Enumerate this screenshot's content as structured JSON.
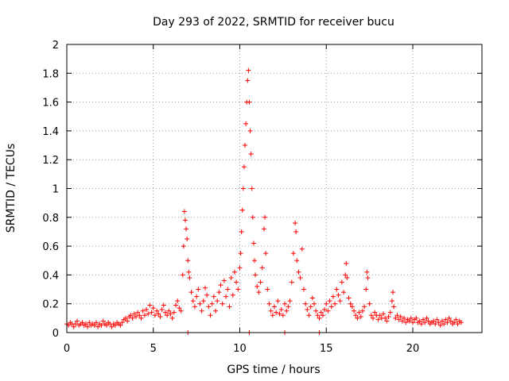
{
  "chart_data": {
    "type": "scatter",
    "title": "Day 293 of 2022, SRMTID for receiver bucu",
    "xlabel": "GPS time / hours",
    "ylabel": "SRMTID / TECUs",
    "xlim": [
      0,
      24
    ],
    "ylim": [
      0,
      2
    ],
    "x_ticks": [
      0,
      5,
      10,
      15,
      20
    ],
    "x_tick_labels": [
      "0",
      "5",
      "10",
      "15",
      "20"
    ],
    "y_ticks": [
      0,
      0.2,
      0.4,
      0.6,
      0.8,
      1,
      1.2,
      1.4,
      1.6,
      1.8,
      2
    ],
    "y_tick_labels": [
      "0",
      "0.2",
      "0.4",
      "0.6",
      "0.8",
      "1",
      "1.2",
      "1.4",
      "1.6",
      "1.8",
      "2"
    ],
    "grid": true,
    "marker": "plus",
    "marker_color": "#ff0000",
    "series": [
      {
        "name": "SRMTID",
        "points": [
          [
            0.0,
            0.06
          ],
          [
            0.1,
            0.05
          ],
          [
            0.2,
            0.07
          ],
          [
            0.3,
            0.06
          ],
          [
            0.4,
            0.04
          ],
          [
            0.5,
            0.06
          ],
          [
            0.6,
            0.08
          ],
          [
            0.7,
            0.05
          ],
          [
            0.8,
            0.06
          ],
          [
            0.9,
            0.07
          ],
          [
            1.0,
            0.05
          ],
          [
            1.1,
            0.06
          ],
          [
            1.2,
            0.04
          ],
          [
            1.3,
            0.07
          ],
          [
            1.4,
            0.05
          ],
          [
            1.5,
            0.06
          ],
          [
            1.6,
            0.05
          ],
          [
            1.7,
            0.07
          ],
          [
            1.8,
            0.04
          ],
          [
            1.9,
            0.06
          ],
          [
            2.0,
            0.05
          ],
          [
            2.1,
            0.08
          ],
          [
            2.2,
            0.06
          ],
          [
            2.3,
            0.05
          ],
          [
            2.4,
            0.07
          ],
          [
            2.5,
            0.06
          ],
          [
            2.6,
            0.04
          ],
          [
            2.7,
            0.06
          ],
          [
            2.8,
            0.05
          ],
          [
            2.9,
            0.07
          ],
          [
            3.0,
            0.06
          ],
          [
            3.1,
            0.05
          ],
          [
            3.2,
            0.07
          ],
          [
            3.3,
            0.09
          ],
          [
            3.4,
            0.1
          ],
          [
            3.5,
            0.08
          ],
          [
            3.6,
            0.11
          ],
          [
            3.7,
            0.12
          ],
          [
            3.8,
            0.1
          ],
          [
            3.9,
            0.13
          ],
          [
            4.0,
            0.11
          ],
          [
            4.1,
            0.14
          ],
          [
            4.2,
            0.12
          ],
          [
            4.3,
            0.1
          ],
          [
            4.4,
            0.15
          ],
          [
            4.5,
            0.12
          ],
          [
            4.6,
            0.16
          ],
          [
            4.7,
            0.13
          ],
          [
            4.8,
            0.19
          ],
          [
            4.9,
            0.14
          ],
          [
            5.0,
            0.17
          ],
          [
            5.1,
            0.12
          ],
          [
            5.2,
            0.15
          ],
          [
            5.3,
            0.13
          ],
          [
            5.4,
            0.11
          ],
          [
            5.5,
            0.16
          ],
          [
            5.6,
            0.19
          ],
          [
            5.7,
            0.14
          ],
          [
            5.8,
            0.12
          ],
          [
            5.9,
            0.15
          ],
          [
            6.0,
            0.13
          ],
          [
            6.1,
            0.1
          ],
          [
            6.2,
            0.14
          ],
          [
            6.3,
            0.19
          ],
          [
            6.4,
            0.22
          ],
          [
            6.5,
            0.17
          ],
          [
            6.6,
            0.15
          ],
          [
            6.7,
            0.4
          ],
          [
            6.75,
            0.6
          ],
          [
            6.8,
            0.84
          ],
          [
            6.85,
            0.78
          ],
          [
            6.9,
            0.72
          ],
          [
            6.95,
            0.65
          ],
          [
            7.0,
            0.5
          ],
          [
            7.05,
            0.42
          ],
          [
            7.1,
            0.38
          ],
          [
            7.2,
            0.28
          ],
          [
            7.3,
            0.22
          ],
          [
            7.4,
            0.18
          ],
          [
            7.5,
            0.25
          ],
          [
            7.6,
            0.3
          ],
          [
            7.7,
            0.2
          ],
          [
            7.8,
            0.15
          ],
          [
            7.9,
            0.22
          ],
          [
            8.0,
            0.31
          ],
          [
            8.1,
            0.26
          ],
          [
            8.2,
            0.18
          ],
          [
            8.3,
            0.12
          ],
          [
            8.4,
            0.2
          ],
          [
            8.5,
            0.25
          ],
          [
            8.6,
            0.15
          ],
          [
            8.7,
            0.22
          ],
          [
            8.8,
            0.28
          ],
          [
            8.9,
            0.33
          ],
          [
            9.0,
            0.2
          ],
          [
            9.1,
            0.36
          ],
          [
            9.2,
            0.25
          ],
          [
            9.3,
            0.3
          ],
          [
            9.4,
            0.18
          ],
          [
            9.5,
            0.38
          ],
          [
            9.6,
            0.26
          ],
          [
            9.7,
            0.42
          ],
          [
            9.8,
            0.35
          ],
          [
            9.9,
            0.3
          ],
          [
            10.0,
            0.45
          ],
          [
            10.05,
            0.55
          ],
          [
            10.1,
            0.7
          ],
          [
            10.15,
            0.85
          ],
          [
            10.2,
            1.0
          ],
          [
            10.25,
            1.15
          ],
          [
            10.3,
            1.3
          ],
          [
            10.35,
            1.45
          ],
          [
            10.4,
            1.6
          ],
          [
            10.45,
            1.75
          ],
          [
            10.5,
            1.82
          ],
          [
            10.55,
            1.6
          ],
          [
            10.6,
            1.4
          ],
          [
            10.65,
            1.24
          ],
          [
            10.7,
            1.0
          ],
          [
            10.75,
            0.8
          ],
          [
            10.8,
            0.62
          ],
          [
            10.85,
            0.5
          ],
          [
            10.9,
            0.4
          ],
          [
            11.0,
            0.32
          ],
          [
            11.1,
            0.28
          ],
          [
            11.2,
            0.35
          ],
          [
            11.3,
            0.45
          ],
          [
            11.4,
            0.72
          ],
          [
            11.45,
            0.8
          ],
          [
            11.5,
            0.55
          ],
          [
            11.6,
            0.3
          ],
          [
            11.7,
            0.2
          ],
          [
            11.8,
            0.15
          ],
          [
            11.9,
            0.12
          ],
          [
            12.0,
            0.18
          ],
          [
            12.1,
            0.14
          ],
          [
            12.2,
            0.22
          ],
          [
            12.3,
            0.13
          ],
          [
            12.4,
            0.16
          ],
          [
            12.5,
            0.12
          ],
          [
            12.6,
            0.2
          ],
          [
            12.7,
            0.15
          ],
          [
            12.8,
            0.18
          ],
          [
            12.9,
            0.22
          ],
          [
            13.0,
            0.35
          ],
          [
            13.1,
            0.55
          ],
          [
            13.2,
            0.76
          ],
          [
            13.25,
            0.7
          ],
          [
            13.3,
            0.5
          ],
          [
            13.4,
            0.42
          ],
          [
            13.5,
            0.38
          ],
          [
            13.6,
            0.58
          ],
          [
            13.7,
            0.3
          ],
          [
            13.8,
            0.2
          ],
          [
            13.9,
            0.16
          ],
          [
            14.0,
            0.12
          ],
          [
            14.1,
            0.18
          ],
          [
            14.2,
            0.24
          ],
          [
            14.3,
            0.2
          ],
          [
            14.4,
            0.15
          ],
          [
            14.5,
            0.12
          ],
          [
            14.6,
            0.1
          ],
          [
            14.7,
            0.14
          ],
          [
            14.8,
            0.12
          ],
          [
            14.9,
            0.16
          ],
          [
            15.0,
            0.2
          ],
          [
            15.1,
            0.15
          ],
          [
            15.2,
            0.22
          ],
          [
            15.3,
            0.18
          ],
          [
            15.4,
            0.25
          ],
          [
            15.5,
            0.2
          ],
          [
            15.6,
            0.3
          ],
          [
            15.7,
            0.26
          ],
          [
            15.8,
            0.22
          ],
          [
            15.9,
            0.35
          ],
          [
            16.0,
            0.28
          ],
          [
            16.1,
            0.4
          ],
          [
            16.15,
            0.48
          ],
          [
            16.2,
            0.38
          ],
          [
            16.3,
            0.24
          ],
          [
            16.4,
            0.2
          ],
          [
            16.5,
            0.18
          ],
          [
            16.6,
            0.15
          ],
          [
            16.7,
            0.12
          ],
          [
            16.8,
            0.1
          ],
          [
            16.9,
            0.14
          ],
          [
            17.0,
            0.11
          ],
          [
            17.1,
            0.15
          ],
          [
            17.2,
            0.18
          ],
          [
            17.3,
            0.3
          ],
          [
            17.35,
            0.42
          ],
          [
            17.4,
            0.38
          ],
          [
            17.5,
            0.2
          ],
          [
            17.6,
            0.12
          ],
          [
            17.7,
            0.1
          ],
          [
            17.8,
            0.14
          ],
          [
            17.9,
            0.12
          ],
          [
            18.0,
            0.09
          ],
          [
            18.1,
            0.12
          ],
          [
            18.2,
            0.1
          ],
          [
            18.3,
            0.13
          ],
          [
            18.4,
            0.1
          ],
          [
            18.5,
            0.08
          ],
          [
            18.6,
            0.11
          ],
          [
            18.7,
            0.14
          ],
          [
            18.8,
            0.22
          ],
          [
            18.85,
            0.28
          ],
          [
            18.9,
            0.18
          ],
          [
            19.0,
            0.1
          ],
          [
            19.1,
            0.12
          ],
          [
            19.2,
            0.09
          ],
          [
            19.3,
            0.11
          ],
          [
            19.4,
            0.08
          ],
          [
            19.5,
            0.1
          ],
          [
            19.6,
            0.07
          ],
          [
            19.7,
            0.09
          ],
          [
            19.8,
            0.08
          ],
          [
            19.9,
            0.1
          ],
          [
            20.0,
            0.07
          ],
          [
            20.1,
            0.09
          ],
          [
            20.2,
            0.1
          ],
          [
            20.3,
            0.07
          ],
          [
            20.4,
            0.08
          ],
          [
            20.5,
            0.06
          ],
          [
            20.6,
            0.09
          ],
          [
            20.7,
            0.07
          ],
          [
            20.8,
            0.1
          ],
          [
            20.9,
            0.08
          ],
          [
            21.0,
            0.06
          ],
          [
            21.1,
            0.07
          ],
          [
            21.2,
            0.08
          ],
          [
            21.3,
            0.06
          ],
          [
            21.4,
            0.09
          ],
          [
            21.5,
            0.07
          ],
          [
            21.6,
            0.05
          ],
          [
            21.7,
            0.08
          ],
          [
            21.8,
            0.06
          ],
          [
            21.9,
            0.09
          ],
          [
            22.0,
            0.07
          ],
          [
            22.1,
            0.1
          ],
          [
            22.2,
            0.08
          ],
          [
            22.3,
            0.06
          ],
          [
            22.4,
            0.07
          ],
          [
            22.5,
            0.09
          ],
          [
            22.6,
            0.06
          ],
          [
            22.7,
            0.08
          ],
          [
            22.8,
            0.07
          ],
          [
            10.55,
            0.0
          ],
          [
            14.6,
            0.0
          ],
          [
            7.0,
            0.0
          ],
          [
            12.6,
            0.0
          ]
        ]
      }
    ]
  }
}
